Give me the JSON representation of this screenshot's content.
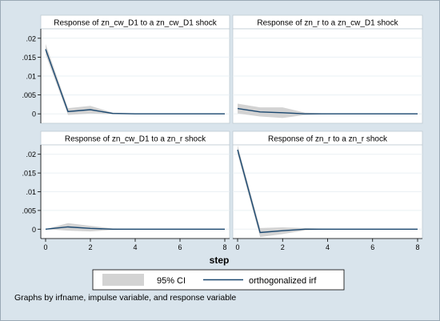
{
  "figure": {
    "xlabel": "step",
    "note": "Graphs by irfname, impulse variable, and response variable"
  },
  "legend": {
    "placement": "bottom",
    "ci_label": "95% CI",
    "line_label": "orthogonalized irf"
  },
  "colors": {
    "background": "#d9e4ec",
    "panel": "#ffffff",
    "title_bar": "#ffffff",
    "line": "#1a476f",
    "ci_band": "#d3d3d3",
    "grid": "#eaf0f4"
  },
  "chart_data": [
    {
      "type": "line",
      "title": "Response of zn_cw_D1 to a zn_cw_D1 shock",
      "x": [
        0,
        1,
        2,
        3,
        4,
        5,
        6,
        7,
        8
      ],
      "xticks": [
        "0",
        "2",
        "4",
        "6",
        "8"
      ],
      "yticks": [
        "0",
        ".005",
        ".01",
        ".015",
        ".02"
      ],
      "ylim": [
        -0.0025,
        0.0225
      ],
      "series": [
        {
          "name": "orthogonalized irf",
          "values": [
            0.0171,
            0.0006,
            0.0011,
            0.0001,
            0.0,
            0.0,
            0.0,
            0.0,
            0.0
          ]
        },
        {
          "name": "95% CI upper",
          "values": [
            0.0185,
            0.0015,
            0.0021,
            0.0003,
            0.0001,
            0.0,
            0.0,
            0.0,
            0.0
          ]
        },
        {
          "name": "95% CI lower",
          "values": [
            0.0157,
            -0.0003,
            0.0001,
            -0.0001,
            -0.0001,
            0.0,
            0.0,
            0.0,
            0.0
          ]
        }
      ]
    },
    {
      "type": "line",
      "title": "Response of zn_r to a zn_cw_D1 shock",
      "x": [
        0,
        1,
        2,
        3,
        4,
        5,
        6,
        7,
        8
      ],
      "xticks": [
        "0",
        "2",
        "4",
        "6",
        "8"
      ],
      "yticks": [
        "0",
        ".005",
        ".01",
        ".015",
        ".02"
      ],
      "ylim": [
        -0.0025,
        0.0225
      ],
      "series": [
        {
          "name": "orthogonalized irf",
          "values": [
            0.0014,
            0.0005,
            0.0003,
            0.0,
            0.0,
            0.0,
            0.0,
            0.0,
            0.0
          ]
        },
        {
          "name": "95% CI upper",
          "values": [
            0.0027,
            0.0017,
            0.0017,
            0.0003,
            0.0001,
            0.0,
            0.0,
            0.0,
            0.0
          ]
        },
        {
          "name": "95% CI lower",
          "values": [
            0.0001,
            -0.0007,
            -0.0011,
            -0.0003,
            -0.0001,
            0.0,
            0.0,
            0.0,
            0.0
          ]
        }
      ]
    },
    {
      "type": "line",
      "title": "Response of zn_cw_D1 to a zn_r shock",
      "x": [
        0,
        1,
        2,
        3,
        4,
        5,
        6,
        7,
        8
      ],
      "xticks": [
        "0",
        "2",
        "4",
        "6",
        "8"
      ],
      "yticks": [
        "0",
        ".005",
        ".01",
        ".015",
        ".02"
      ],
      "ylim": [
        -0.0025,
        0.0225
      ],
      "series": [
        {
          "name": "orthogonalized irf",
          "values": [
            0.0,
            0.0006,
            0.0002,
            0.0,
            0.0,
            0.0,
            0.0,
            0.0,
            0.0
          ]
        },
        {
          "name": "95% CI upper",
          "values": [
            0.0,
            0.0016,
            0.0009,
            0.0002,
            0.0001,
            0.0,
            0.0,
            0.0,
            0.0
          ]
        },
        {
          "name": "95% CI lower",
          "values": [
            0.0,
            -0.0004,
            -0.0006,
            -0.0002,
            -0.0001,
            0.0,
            0.0,
            0.0,
            0.0
          ]
        }
      ]
    },
    {
      "type": "line",
      "title": "Response of zn_r to a zn_r shock",
      "x": [
        0,
        1,
        2,
        3,
        4,
        5,
        6,
        7,
        8
      ],
      "xticks": [
        "0",
        "2",
        "4",
        "6",
        "8"
      ],
      "yticks": [
        "0",
        ".005",
        ".01",
        ".015",
        ".02"
      ],
      "ylim": [
        -0.0025,
        0.0225
      ],
      "series": [
        {
          "name": "orthogonalized irf",
          "values": [
            0.0212,
            -0.0009,
            -0.0004,
            0.0,
            0.0,
            0.0,
            0.0,
            0.0,
            0.0
          ]
        },
        {
          "name": "95% CI upper",
          "values": [
            0.0224,
            0.0003,
            0.0005,
            0.0003,
            0.0001,
            0.0,
            0.0,
            0.0,
            0.0
          ]
        },
        {
          "name": "95% CI lower",
          "values": [
            0.02,
            -0.0021,
            -0.0013,
            -0.0003,
            -0.0001,
            0.0,
            0.0,
            0.0,
            0.0
          ]
        }
      ]
    }
  ]
}
